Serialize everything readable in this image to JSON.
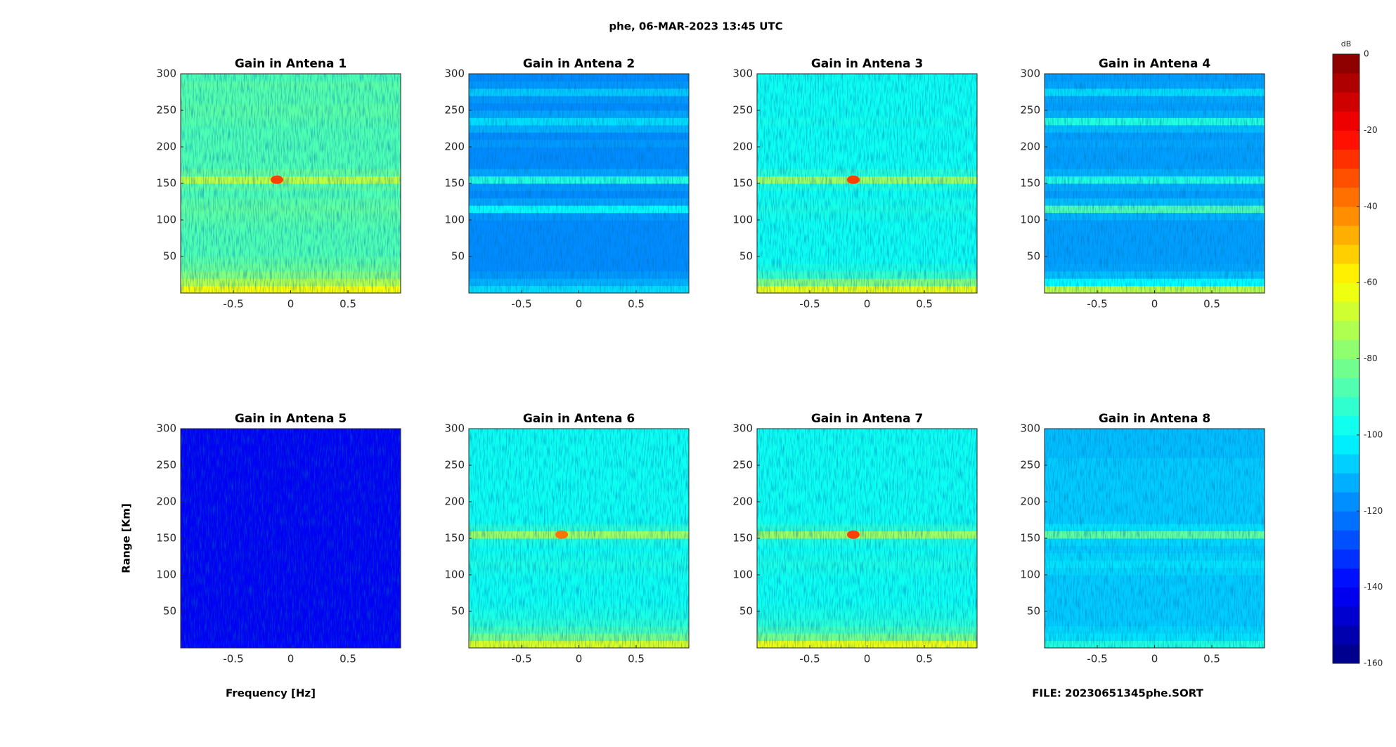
{
  "title": "phe, 06-MAR-2023 13:45 UTC",
  "xlabel": "Frequency [Hz]",
  "ylabel": "Range [Km]",
  "footer": "FILE: 20230651345phe.SORT",
  "chart_data": [
    {
      "type": "heatmap",
      "title": "Gain in Antena 1",
      "xlim": [
        -0.96,
        0.96
      ],
      "xticks": [
        -0.5,
        0,
        0.5
      ],
      "ylim": [
        0,
        300
      ],
      "yticks": [
        50,
        100,
        150,
        200,
        250,
        300
      ],
      "ybins": [
        0,
        10,
        20,
        30,
        40,
        50,
        60,
        70,
        80,
        90,
        100,
        110,
        120,
        130,
        140,
        150,
        160,
        170,
        180,
        190,
        200,
        210,
        220,
        230,
        240,
        250,
        260,
        270,
        280,
        290,
        300
      ],
      "values": [
        -60,
        -72,
        -80,
        -84,
        -86,
        -88,
        -88,
        -88,
        -88,
        -87,
        -86,
        -85,
        -86,
        -88,
        -86,
        -70,
        -84,
        -88,
        -88,
        -88,
        -88,
        -88,
        -88,
        -87,
        -86,
        -86,
        -87,
        -87,
        -86,
        -88
      ],
      "peaks": [
        {
          "x": -0.12,
          "y": 155,
          "value": -30
        }
      ]
    },
    {
      "type": "heatmap",
      "title": "Gain in Antena 2",
      "xlim": [
        -0.96,
        0.96
      ],
      "xticks": [
        -0.5,
        0,
        0.5
      ],
      "ylim": [
        0,
        300
      ],
      "yticks": [
        50,
        100,
        150,
        200,
        250,
        300
      ],
      "ybins": [
        0,
        10,
        20,
        30,
        40,
        50,
        60,
        70,
        80,
        90,
        100,
        110,
        120,
        130,
        140,
        150,
        160,
        170,
        180,
        190,
        200,
        210,
        220,
        230,
        240,
        250,
        260,
        270,
        280,
        290,
        300
      ],
      "values": [
        -105,
        -112,
        -116,
        -118,
        -118,
        -118,
        -118,
        -118,
        -118,
        -118,
        -116,
        -100,
        -114,
        -118,
        -116,
        -95,
        -114,
        -118,
        -118,
        -118,
        -116,
        -118,
        -112,
        -105,
        -114,
        -118,
        -116,
        -108,
        -116,
        -118
      ],
      "peaks": []
    },
    {
      "type": "heatmap",
      "title": "Gain in Antena 3",
      "xlim": [
        -0.96,
        0.96
      ],
      "xticks": [
        -0.5,
        0,
        0.5
      ],
      "ylim": [
        0,
        300
      ],
      "yticks": [
        50,
        100,
        150,
        200,
        250,
        300
      ],
      "ybins": [
        0,
        10,
        20,
        30,
        40,
        50,
        60,
        70,
        80,
        90,
        100,
        110,
        120,
        130,
        140,
        150,
        160,
        170,
        180,
        190,
        200,
        210,
        220,
        230,
        240,
        250,
        260,
        270,
        280,
        290,
        300
      ],
      "values": [
        -62,
        -80,
        -92,
        -96,
        -98,
        -98,
        -98,
        -98,
        -98,
        -98,
        -97,
        -96,
        -97,
        -98,
        -96,
        -75,
        -94,
        -98,
        -98,
        -98,
        -98,
        -98,
        -98,
        -97,
        -98,
        -98,
        -98,
        -98,
        -98,
        -98
      ],
      "peaks": [
        {
          "x": -0.12,
          "y": 155,
          "value": -30
        }
      ]
    },
    {
      "type": "heatmap",
      "title": "Gain in Antena 4",
      "xlim": [
        -0.96,
        0.96
      ],
      "xticks": [
        -0.5,
        0,
        0.5
      ],
      "ylim": [
        0,
        300
      ],
      "yticks": [
        50,
        100,
        150,
        200,
        250,
        300
      ],
      "ybins": [
        0,
        10,
        20,
        30,
        40,
        50,
        60,
        70,
        80,
        90,
        100,
        110,
        120,
        130,
        140,
        150,
        160,
        170,
        180,
        190,
        200,
        210,
        220,
        230,
        240,
        250,
        260,
        270,
        280,
        290,
        300
      ],
      "values": [
        -70,
        -100,
        -110,
        -114,
        -115,
        -115,
        -115,
        -115,
        -115,
        -115,
        -112,
        -88,
        -110,
        -115,
        -113,
        -95,
        -112,
        -115,
        -115,
        -115,
        -114,
        -115,
        -110,
        -95,
        -112,
        -115,
        -114,
        -105,
        -114,
        -115
      ],
      "peaks": []
    },
    {
      "type": "heatmap",
      "title": "Gain in Antena 5",
      "xlim": [
        -0.96,
        0.96
      ],
      "xticks": [
        -0.5,
        0,
        0.5
      ],
      "ylim": [
        0,
        300
      ],
      "yticks": [
        50,
        100,
        150,
        200,
        250,
        300
      ],
      "ybins": [
        0,
        10,
        20,
        30,
        40,
        50,
        60,
        70,
        80,
        90,
        100,
        110,
        120,
        130,
        140,
        150,
        160,
        170,
        180,
        190,
        200,
        210,
        220,
        230,
        240,
        250,
        260,
        270,
        280,
        290,
        300
      ],
      "values": [
        -140,
        -142,
        -142,
        -142,
        -142,
        -142,
        -142,
        -142,
        -142,
        -142,
        -142,
        -142,
        -142,
        -142,
        -142,
        -142,
        -142,
        -142,
        -142,
        -142,
        -142,
        -142,
        -142,
        -142,
        -142,
        -142,
        -142,
        -142,
        -142,
        -142
      ],
      "peaks": []
    },
    {
      "type": "heatmap",
      "title": "Gain in Antena 6",
      "xlim": [
        -0.96,
        0.96
      ],
      "xticks": [
        -0.5,
        0,
        0.5
      ],
      "ylim": [
        0,
        300
      ],
      "yticks": [
        50,
        100,
        150,
        200,
        250,
        300
      ],
      "ybins": [
        0,
        10,
        20,
        30,
        40,
        50,
        60,
        70,
        80,
        90,
        100,
        110,
        120,
        130,
        140,
        150,
        160,
        170,
        180,
        190,
        200,
        210,
        220,
        230,
        240,
        250,
        260,
        270,
        280,
        290,
        300
      ],
      "values": [
        -65,
        -82,
        -90,
        -94,
        -96,
        -97,
        -98,
        -98,
        -98,
        -98,
        -97,
        -96,
        -97,
        -98,
        -96,
        -75,
        -94,
        -98,
        -98,
        -98,
        -98,
        -98,
        -98,
        -98,
        -98,
        -98,
        -98,
        -98,
        -98,
        -98
      ],
      "peaks": [
        {
          "x": -0.15,
          "y": 155,
          "value": -38
        }
      ]
    },
    {
      "type": "heatmap",
      "title": "Gain in Antena 7",
      "xlim": [
        -0.96,
        0.96
      ],
      "xticks": [
        -0.5,
        0,
        0.5
      ],
      "ylim": [
        0,
        300
      ],
      "yticks": [
        50,
        100,
        150,
        200,
        250,
        300
      ],
      "ybins": [
        0,
        10,
        20,
        30,
        40,
        50,
        60,
        70,
        80,
        90,
        100,
        110,
        120,
        130,
        140,
        150,
        160,
        170,
        180,
        190,
        200,
        210,
        220,
        230,
        240,
        250,
        260,
        270,
        280,
        290,
        300
      ],
      "values": [
        -62,
        -82,
        -90,
        -94,
        -96,
        -97,
        -98,
        -98,
        -98,
        -98,
        -97,
        -96,
        -97,
        -98,
        -96,
        -75,
        -94,
        -98,
        -98,
        -98,
        -98,
        -98,
        -98,
        -98,
        -98,
        -98,
        -98,
        -98,
        -98,
        -98
      ],
      "peaks": [
        {
          "x": -0.12,
          "y": 155,
          "value": -30
        }
      ]
    },
    {
      "type": "heatmap",
      "title": "Gain in Antena 8",
      "xlim": [
        -0.96,
        0.96
      ],
      "xticks": [
        -0.5,
        0,
        0.5
      ],
      "ylim": [
        0,
        300
      ],
      "yticks": [
        50,
        100,
        150,
        200,
        250,
        300
      ],
      "ybins": [
        0,
        10,
        20,
        30,
        40,
        50,
        60,
        70,
        80,
        90,
        100,
        110,
        120,
        130,
        140,
        150,
        160,
        170,
        180,
        190,
        200,
        210,
        220,
        230,
        240,
        250,
        260,
        270,
        280,
        290,
        300
      ],
      "values": [
        -95,
        -104,
        -106,
        -108,
        -108,
        -108,
        -108,
        -108,
        -108,
        -108,
        -106,
        -104,
        -106,
        -108,
        -106,
        -85,
        -104,
        -108,
        -108,
        -108,
        -108,
        -108,
        -108,
        -108,
        -108,
        -108,
        -110,
        -110,
        -110,
        -110
      ],
      "peaks": []
    },
    {
      "type": "colorbar",
      "label": "dB",
      "clim": [
        -160,
        0
      ],
      "ticks": [
        0,
        -20,
        -40,
        -60,
        -80,
        -100,
        -120,
        -140,
        -160
      ]
    }
  ]
}
